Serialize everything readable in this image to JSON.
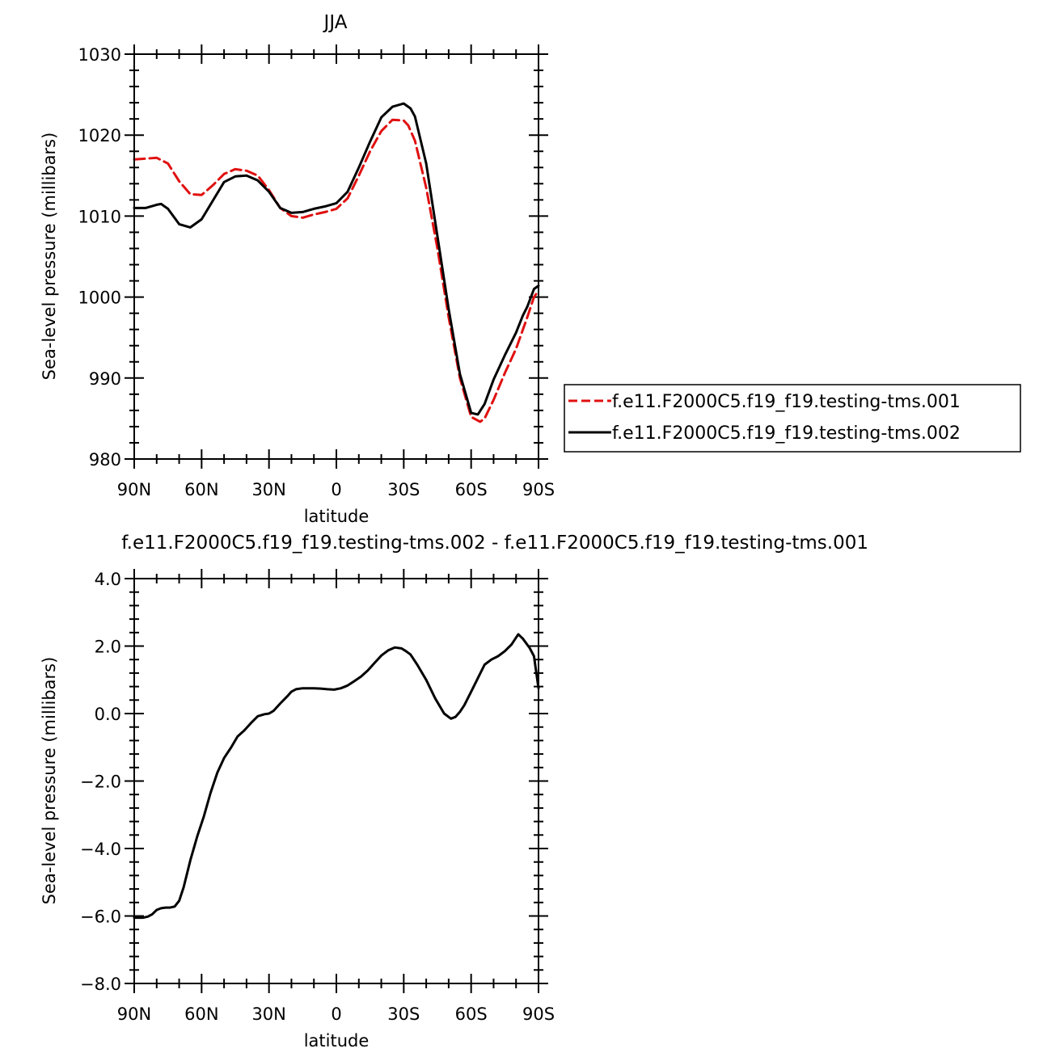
{
  "chart_data": [
    {
      "type": "line",
      "title": "JJA",
      "xlabel": "latitude",
      "ylabel": "Sea-level pressure (millibars)",
      "xlim": [
        -90,
        90
      ],
      "ylim": [
        980,
        1030
      ],
      "x_ticks": [
        -90,
        -60,
        -30,
        0,
        30,
        60,
        90
      ],
      "x_tick_labels": [
        "90N",
        "60N",
        "30N",
        "0",
        "30S",
        "60S",
        "90S"
      ],
      "y_ticks": [
        980,
        990,
        1000,
        1010,
        1020,
        1030
      ],
      "y_tick_labels": [
        "980",
        "990",
        "1000",
        "1010",
        "1020",
        "1030"
      ],
      "grid": false,
      "legend_placement": "right",
      "series": [
        {
          "name": "f.e11.F2000C5.f19_f19.testing-tms.001",
          "color": "#e01010",
          "dash": "dashed",
          "x": [
            -90,
            -85,
            -80,
            -75,
            -70,
            -65,
            -60,
            -55,
            -50,
            -45,
            -40,
            -35,
            -30,
            -25,
            -20,
            -15,
            -10,
            -5,
            0,
            5,
            10,
            15,
            20,
            25,
            30,
            32,
            35,
            40,
            45,
            50,
            55,
            60,
            64,
            66,
            70,
            75,
            80,
            85,
            88,
            90
          ],
          "values": [
            1017.0,
            1017.1,
            1017.2,
            1016.5,
            1014.3,
            1012.7,
            1012.6,
            1013.8,
            1015.2,
            1015.8,
            1015.6,
            1015.0,
            1013.2,
            1011.0,
            1010.0,
            1009.8,
            1010.2,
            1010.5,
            1010.9,
            1012.2,
            1015.0,
            1018.0,
            1020.5,
            1021.9,
            1021.8,
            1021.2,
            1019.3,
            1013.5,
            1006.0,
            997.5,
            990.0,
            985.2,
            984.6,
            985.0,
            987.3,
            990.6,
            993.6,
            997.5,
            1000.0,
            1000.8
          ]
        },
        {
          "name": "f.e11.F2000C5.f19_f19.testing-tms.002",
          "color": "#000000",
          "dash": "solid",
          "x": [
            -90,
            -85,
            -80,
            -78,
            -75,
            -70,
            -65,
            -60,
            -55,
            -50,
            -45,
            -40,
            -35,
            -30,
            -25,
            -20,
            -15,
            -10,
            -5,
            0,
            5,
            10,
            15,
            20,
            25,
            30,
            33,
            35,
            40,
            45,
            50,
            55,
            60,
            63,
            66,
            70,
            75,
            80,
            83,
            85,
            88,
            90
          ],
          "values": [
            1011.0,
            1011.0,
            1011.4,
            1011.5,
            1010.9,
            1009.0,
            1008.6,
            1009.6,
            1011.9,
            1014.2,
            1014.9,
            1015.0,
            1014.4,
            1013.0,
            1011.0,
            1010.4,
            1010.5,
            1010.9,
            1011.2,
            1011.6,
            1013.0,
            1016.0,
            1019.2,
            1022.2,
            1023.5,
            1023.9,
            1023.3,
            1022.3,
            1016.5,
            1007.5,
            998.5,
            990.5,
            985.7,
            985.5,
            986.8,
            989.8,
            992.8,
            995.6,
            997.7,
            998.8,
            1001.0,
            1001.4
          ]
        }
      ]
    },
    {
      "type": "line",
      "title": "f.e11.F2000C5.f19_f19.testing-tms.002 - f.e11.F2000C5.f19_f19.testing-tms.001",
      "xlabel": "latitude",
      "ylabel": "Sea-level pressure (millibars)",
      "xlim": [
        -90,
        90
      ],
      "ylim": [
        -8.0,
        4.0
      ],
      "x_ticks": [
        -90,
        -60,
        -30,
        0,
        30,
        60,
        90
      ],
      "x_tick_labels": [
        "90N",
        "60N",
        "30N",
        "0",
        "30S",
        "60S",
        "90S"
      ],
      "y_ticks": [
        -8.0,
        -6.0,
        -4.0,
        -2.0,
        0.0,
        2.0,
        4.0
      ],
      "y_tick_labels": [
        "−8.0",
        "−6.0",
        "−4.0",
        "−2.0",
        "0.0",
        "2.0",
        "4.0"
      ],
      "grid": false,
      "series": [
        {
          "color": "#000000",
          "dash": "solid",
          "x": [
            -90,
            -86,
            -84,
            -82,
            -80,
            -78,
            -76,
            -74,
            -72,
            -70,
            -68,
            -65,
            -62,
            -59,
            -56,
            -53,
            -50,
            -47,
            -44,
            -41,
            -38,
            -35,
            -32,
            -30,
            -28,
            -25,
            -22,
            -20,
            -18,
            -15,
            -12,
            -10,
            -7,
            -4,
            -1,
            2,
            5,
            8,
            11,
            14,
            17,
            20,
            23,
            26,
            29,
            31,
            33,
            36,
            40,
            44,
            48,
            51,
            53,
            55,
            57,
            60,
            63,
            66,
            69,
            72,
            75,
            78,
            80,
            81,
            83,
            86,
            88,
            90
          ],
          "values": [
            -6.05,
            -6.05,
            -6.02,
            -5.95,
            -5.82,
            -5.77,
            -5.75,
            -5.75,
            -5.72,
            -5.55,
            -5.15,
            -4.35,
            -3.65,
            -3.05,
            -2.35,
            -1.75,
            -1.32,
            -1.02,
            -0.68,
            -0.5,
            -0.28,
            -0.08,
            -0.02,
            0.0,
            0.08,
            0.3,
            0.5,
            0.65,
            0.72,
            0.75,
            0.75,
            0.75,
            0.74,
            0.72,
            0.71,
            0.75,
            0.83,
            0.96,
            1.1,
            1.28,
            1.5,
            1.72,
            1.87,
            1.96,
            1.93,
            1.85,
            1.75,
            1.45,
            1.0,
            0.45,
            0.0,
            -0.15,
            -0.1,
            0.05,
            0.25,
            0.65,
            1.05,
            1.45,
            1.6,
            1.7,
            1.85,
            2.05,
            2.25,
            2.35,
            2.22,
            1.95,
            1.7,
            0.75
          ]
        }
      ]
    }
  ]
}
